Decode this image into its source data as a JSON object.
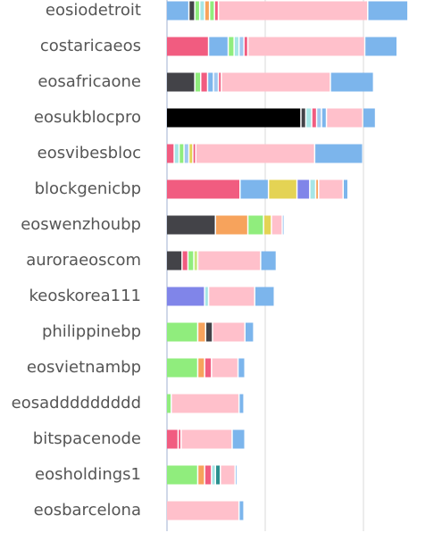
{
  "chart_data": {
    "type": "stacked-bar",
    "orientation": "horizontal",
    "categories": [
      "eosiodetroit",
      "costaricaeos",
      "eosafricaone",
      "eosukblocpro",
      "eosvibesbloc",
      "blockgenicbp",
      "eoswenzhoubp",
      "auroraeoscom",
      "keoskorea111",
      "philippinebp",
      "eosvietnambp",
      "eosaddddddddd",
      "bitspacenode",
      "eosholdings1",
      "eosbarcelona"
    ],
    "stacks": [
      [
        {
          "color": "#7cb5ec",
          "value": 2.3
        },
        {
          "color": "#434348",
          "value": 0.6
        },
        {
          "color": "#90ed7d",
          "value": 0.5
        },
        {
          "color": "#a6e6e6",
          "value": 0.5
        },
        {
          "color": "#f7a35c",
          "value": 0.5
        },
        {
          "color": "#90ed7d",
          "value": 0.5
        },
        {
          "color": "#f15c80",
          "value": 0.4
        },
        {
          "color": "#ffc0cb",
          "value": 15.2
        },
        {
          "color": "#7cb5ec",
          "value": 4.1
        }
      ],
      [
        {
          "color": "#f15c80",
          "value": 4.3
        },
        {
          "color": "#7cb5ec",
          "value": 2.0
        },
        {
          "color": "#90ed7d",
          "value": 0.6
        },
        {
          "color": "#a6e6e6",
          "value": 0.5
        },
        {
          "color": "#a0c8f0",
          "value": 0.5
        },
        {
          "color": "#f15c80",
          "value": 0.4
        },
        {
          "color": "#ffc0cb",
          "value": 11.9
        },
        {
          "color": "#7cb5ec",
          "value": 3.3
        }
      ],
      [
        {
          "color": "#434348",
          "value": 2.9
        },
        {
          "color": "#90ed7d",
          "value": 0.6
        },
        {
          "color": "#f15c80",
          "value": 0.7
        },
        {
          "color": "#7cb5ec",
          "value": 0.6
        },
        {
          "color": "#a0c8f0",
          "value": 0.5
        },
        {
          "color": "#f15c80",
          "value": 0.3
        },
        {
          "color": "#ffc0cb",
          "value": 11.1
        },
        {
          "color": "#7cb5ec",
          "value": 4.4
        }
      ],
      [
        {
          "color": "#000000",
          "value": 13.7
        },
        {
          "color": "#434348",
          "value": 0.5
        },
        {
          "color": "#a6e6e6",
          "value": 0.6
        },
        {
          "color": "#f15c80",
          "value": 0.5
        },
        {
          "color": "#a0c8f0",
          "value": 0.5
        },
        {
          "color": "#7cb5ec",
          "value": 0.5
        },
        {
          "color": "#ffc0cb",
          "value": 3.7
        },
        {
          "color": "#7cb5ec",
          "value": 1.3
        }
      ],
      [
        {
          "color": "#f15c80",
          "value": 0.8
        },
        {
          "color": "#a6e6e6",
          "value": 0.5
        },
        {
          "color": "#90ed7d",
          "value": 0.5
        },
        {
          "color": "#a0c8f0",
          "value": 0.5
        },
        {
          "color": "#e4d354",
          "value": 0.4
        },
        {
          "color": "#f15c80",
          "value": 0.3
        },
        {
          "color": "#ffc0cb",
          "value": 12.1
        },
        {
          "color": "#7cb5ec",
          "value": 4.9
        }
      ],
      [
        {
          "color": "#f15c80",
          "value": 7.5
        },
        {
          "color": "#7cb5ec",
          "value": 2.9
        },
        {
          "color": "#e4d354",
          "value": 2.9
        },
        {
          "color": "#8085e9",
          "value": 1.3
        },
        {
          "color": "#a6e6e6",
          "value": 0.6
        },
        {
          "color": "#f7a35c",
          "value": 0.3
        },
        {
          "color": "#ffc0cb",
          "value": 2.5
        },
        {
          "color": "#7cb5ec",
          "value": 0.5
        }
      ],
      [
        {
          "color": "#434348",
          "value": 5.0
        },
        {
          "color": "#f7a35c",
          "value": 3.3
        },
        {
          "color": "#90ed7d",
          "value": 1.6
        },
        {
          "color": "#e4d354",
          "value": 0.8
        },
        {
          "color": "#ffc0cb",
          "value": 1.1
        },
        {
          "color": "#7cb5ec",
          "value": 0.2
        }
      ],
      [
        {
          "color": "#434348",
          "value": 1.6
        },
        {
          "color": "#f15c80",
          "value": 0.6
        },
        {
          "color": "#90ed7d",
          "value": 0.6
        },
        {
          "color": "#c8e87d",
          "value": 0.4
        },
        {
          "color": "#ffc0cb",
          "value": 6.4
        },
        {
          "color": "#7cb5ec",
          "value": 1.6
        }
      ],
      [
        {
          "color": "#8085e9",
          "value": 3.9
        },
        {
          "color": "#a6e6e6",
          "value": 0.4
        },
        {
          "color": "#ffc0cb",
          "value": 4.7
        },
        {
          "color": "#7cb5ec",
          "value": 2.0
        }
      ],
      [
        {
          "color": "#90ed7d",
          "value": 3.2
        },
        {
          "color": "#f7a35c",
          "value": 0.8
        },
        {
          "color": "#434348",
          "value": 0.7
        },
        {
          "color": "#ffc0cb",
          "value": 3.3
        },
        {
          "color": "#7cb5ec",
          "value": 0.9
        }
      ],
      [
        {
          "color": "#90ed7d",
          "value": 3.2
        },
        {
          "color": "#f7a35c",
          "value": 0.7
        },
        {
          "color": "#f15c80",
          "value": 0.7
        },
        {
          "color": "#ffc0cb",
          "value": 2.7
        },
        {
          "color": "#7cb5ec",
          "value": 0.7
        }
      ],
      [
        {
          "color": "#90ed7d",
          "value": 0.5
        },
        {
          "color": "#ffc0cb",
          "value": 6.9
        },
        {
          "color": "#7cb5ec",
          "value": 0.5
        }
      ],
      [
        {
          "color": "#f15c80",
          "value": 1.2
        },
        {
          "color": "#f15c80",
          "value": 0.3
        },
        {
          "color": "#ffc0cb",
          "value": 5.2
        },
        {
          "color": "#7cb5ec",
          "value": 1.3
        }
      ],
      [
        {
          "color": "#90ed7d",
          "value": 3.2
        },
        {
          "color": "#f7a35c",
          "value": 0.7
        },
        {
          "color": "#f15c80",
          "value": 0.7
        },
        {
          "color": "#a6e6e6",
          "value": 0.4
        },
        {
          "color": "#2b908f",
          "value": 0.5
        },
        {
          "color": "#ffc0cb",
          "value": 1.5
        },
        {
          "color": "#7cb5ec",
          "value": 0.2
        }
      ],
      [
        {
          "color": "#ffc0cb",
          "value": 7.4
        },
        {
          "color": "#7cb5ec",
          "value": 0.5
        }
      ]
    ],
    "xlim": [
      0,
      27
    ],
    "grid_lines": [
      0,
      10,
      20
    ]
  }
}
